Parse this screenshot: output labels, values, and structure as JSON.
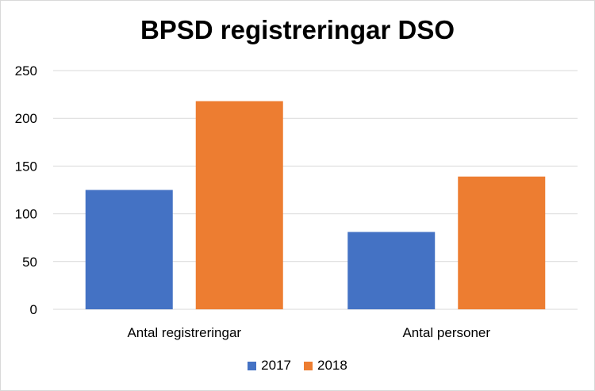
{
  "chart_data": {
    "type": "bar",
    "title": "BPSD registreringar DSO",
    "categories": [
      "Antal registreringar",
      "Antal personer"
    ],
    "series": [
      {
        "name": "2017",
        "values": [
          125,
          81
        ],
        "color": "#4472C4"
      },
      {
        "name": "2018",
        "values": [
          218,
          139
        ],
        "color": "#ED7D31"
      }
    ],
    "ylim": [
      0,
      250
    ],
    "yticks": [
      0,
      50,
      100,
      150,
      200,
      250
    ],
    "grid": true,
    "legend_position": "bottom"
  }
}
